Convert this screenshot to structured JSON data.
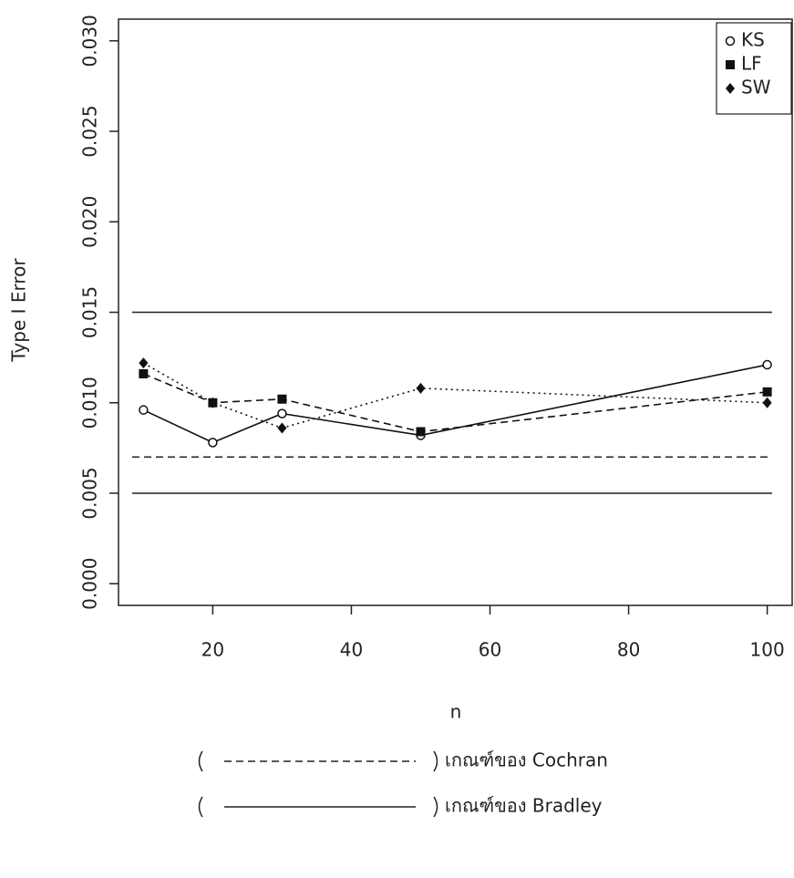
{
  "chart_data": {
    "type": "line",
    "x_label": "n",
    "y_label": "Type I Error",
    "x": [
      10,
      20,
      30,
      50,
      100
    ],
    "series": [
      {
        "name": "KS",
        "color": "#111111",
        "marker": "open-circle",
        "dash": "solid",
        "values": [
          0.0096,
          0.0078,
          0.0094,
          0.0082,
          0.0121
        ]
      },
      {
        "name": "LF",
        "color": "#111111",
        "marker": "square",
        "dash": "dashed",
        "values": [
          0.0116,
          0.01,
          0.0102,
          0.0084,
          0.0106
        ]
      },
      {
        "name": "SW",
        "color": "#111111",
        "marker": "diamond",
        "dash": "dotted",
        "values": [
          0.0122,
          0.01,
          0.0086,
          0.0108,
          0.01
        ]
      }
    ],
    "xlim": [
      6.4,
      103.6
    ],
    "xticks": [
      20,
      40,
      60,
      80,
      100
    ],
    "ylim": [
      -0.0012,
      0.0312
    ],
    "yticks": [
      {
        "value": 0,
        "label": "0.000"
      },
      0.005,
      {
        "value": 0.01,
        "label": "0.010"
      },
      0.015,
      {
        "value": 0.02,
        "label": "0.020"
      },
      0.025,
      {
        "value": 0.03,
        "label": "0.030"
      }
    ],
    "legend": "top right",
    "reference_lines": [
      {
        "label": "เกณฑ์ของ Cochran",
        "dash": "dashed",
        "values": [
          0.007
        ]
      },
      {
        "label": "เกณฑ์ของ Bradley",
        "dash": "solid",
        "values": [
          0.005,
          0.015
        ]
      }
    ]
  }
}
